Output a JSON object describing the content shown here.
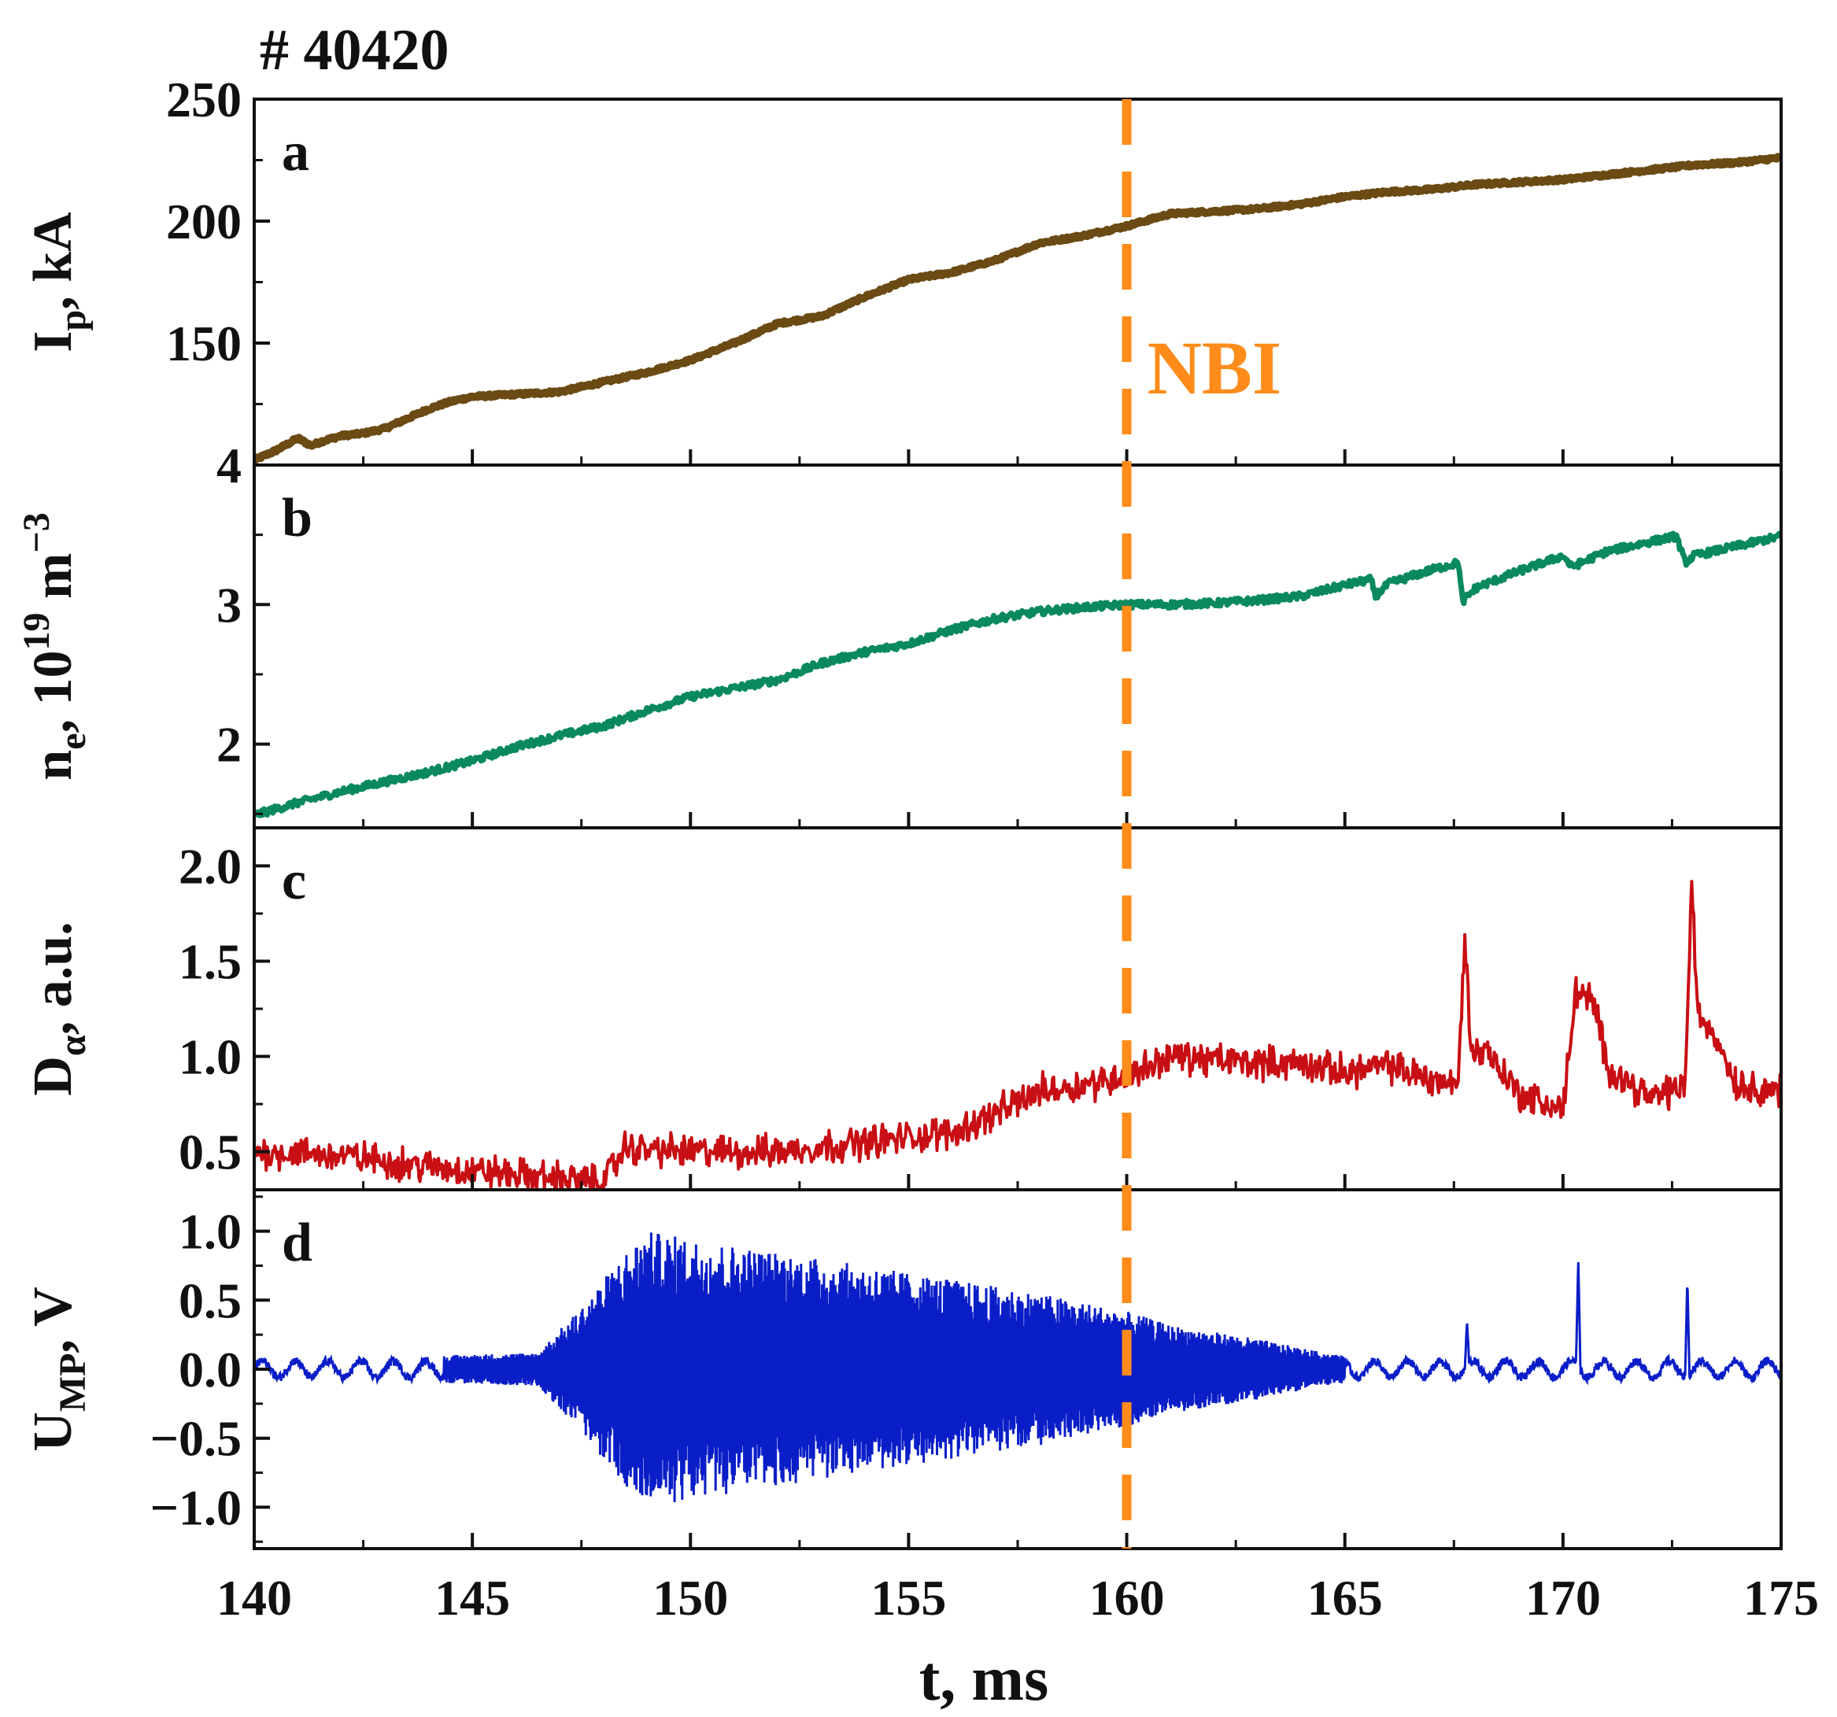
{
  "figure": {
    "shot_label": "# 40420",
    "event_label": "NBI",
    "event_color": "#ff8c1a"
  },
  "chart_data": [
    {
      "type": "line",
      "panel": "a",
      "ylabel": "I_p, kA",
      "ylabel_main": "I",
      "ylabel_sub": "p",
      "ylabel_tail": ", kA",
      "ylim": [
        100,
        250
      ],
      "yticks": [
        150,
        200,
        250
      ],
      "ytick_labels": [
        "150",
        "200",
        "250"
      ],
      "xlim": [
        140,
        175
      ],
      "color": "#6b4a14",
      "noise": 0.6,
      "x": [
        140,
        140.5,
        141,
        141.3,
        141.6,
        142,
        142.5,
        143,
        143.5,
        144,
        144.5,
        145,
        146,
        147,
        148,
        149,
        150,
        151,
        152,
        153,
        154,
        155,
        156,
        157,
        158,
        159,
        160,
        161,
        162,
        163,
        164,
        165,
        166,
        167,
        168,
        169,
        170,
        171,
        172,
        173,
        174,
        175
      ],
      "values": [
        102,
        106,
        111,
        108,
        110,
        112,
        113,
        115,
        119,
        123,
        126,
        128,
        129,
        130,
        134,
        138,
        143,
        150,
        158,
        161,
        169,
        176,
        179,
        184,
        191,
        194,
        198,
        203,
        204,
        205,
        207,
        210,
        212,
        213,
        215,
        216,
        217,
        219,
        221,
        223,
        224,
        226
      ]
    },
    {
      "type": "line",
      "panel": "b",
      "ylabel": "n_e, 10^19 m^-3",
      "ylabel_main": "n",
      "ylabel_sub": "e",
      "ylabel_mid": ", 10",
      "ylabel_sup1": "19",
      "ylabel_mid2": " m",
      "ylabel_sup2": "−3",
      "ylim": [
        1.4,
        4.0
      ],
      "yticks": [
        2,
        3,
        4
      ],
      "ytick_labels": [
        "2",
        "3",
        "4"
      ],
      "xlim": [
        140,
        175
      ],
      "color": "#0a8a5c",
      "noise": 0.025,
      "x": [
        140,
        141,
        142,
        143,
        144,
        145,
        146,
        147,
        148,
        149,
        150,
        151,
        152,
        153,
        154,
        155,
        156,
        157,
        158,
        159,
        160,
        161,
        162,
        163,
        164,
        165,
        165.6,
        165.7,
        166,
        167,
        167.6,
        167.7,
        168,
        169,
        170,
        170.2,
        171,
        172,
        172.6,
        172.8,
        173,
        174,
        175
      ],
      "values": [
        1.49,
        1.58,
        1.66,
        1.73,
        1.8,
        1.88,
        1.98,
        2.06,
        2.13,
        2.24,
        2.34,
        2.4,
        2.46,
        2.58,
        2.66,
        2.72,
        2.82,
        2.9,
        2.95,
        2.98,
        3.0,
        3.0,
        3.01,
        3.03,
        3.06,
        3.14,
        3.18,
        3.06,
        3.15,
        3.25,
        3.3,
        3.02,
        3.12,
        3.24,
        3.35,
        3.27,
        3.38,
        3.45,
        3.49,
        3.3,
        3.35,
        3.42,
        3.49
      ]
    },
    {
      "type": "line",
      "panel": "c",
      "ylabel": "D_α, a.u.",
      "ylabel_main": "D",
      "ylabel_sub": "α",
      "ylabel_tail": ", a.u.",
      "ylim": [
        0.3,
        2.2
      ],
      "yticks": [
        0.5,
        1.0,
        1.5,
        2.0
      ],
      "ytick_labels": [
        "0.5",
        "1.0",
        "1.5",
        "2.0"
      ],
      "xlim": [
        140,
        175
      ],
      "color": "#c80f14",
      "noise": 0.06,
      "x": [
        140,
        142,
        144,
        146,
        147,
        148,
        148.5,
        150,
        152,
        154,
        156,
        157,
        158,
        159,
        160,
        161,
        162,
        163,
        164,
        165,
        166,
        167,
        167.6,
        167.75,
        167.9,
        168.2,
        169,
        170,
        170.3,
        170.6,
        170.8,
        171,
        172,
        172.8,
        172.95,
        173.1,
        173.4,
        174,
        175
      ],
      "values": [
        0.5,
        0.48,
        0.42,
        0.38,
        0.36,
        0.34,
        0.52,
        0.5,
        0.5,
        0.55,
        0.6,
        0.7,
        0.82,
        0.85,
        0.9,
        1.0,
        0.98,
        0.97,
        0.96,
        0.92,
        0.95,
        0.88,
        0.85,
        1.65,
        1.0,
        1.05,
        0.8,
        0.72,
        1.35,
        1.3,
        1.2,
        0.95,
        0.78,
        0.85,
        1.9,
        1.2,
        1.15,
        0.85,
        0.82
      ]
    },
    {
      "type": "line",
      "panel": "d",
      "ylabel": "U_MP, V",
      "ylabel_main": "U",
      "ylabel_sub": "MP",
      "ylabel_tail": ", V",
      "ylim": [
        -1.3,
        1.3
      ],
      "yticks": [
        -1.0,
        -0.5,
        0.0,
        0.5,
        1.0
      ],
      "ytick_labels": [
        "−1.0",
        "−0.5",
        "0.0",
        "0.5",
        "1.0"
      ],
      "xlim": [
        140,
        175
      ],
      "color": "#0a1ec8",
      "baseline_amplitude": 0.06,
      "envelope_x": [
        140,
        146.5,
        147.5,
        148.5,
        149,
        150,
        152,
        154,
        156,
        158,
        160,
        161,
        163,
        164.5,
        165.5,
        175
      ],
      "envelope_amp": [
        0.06,
        0.12,
        0.45,
        0.85,
        1.0,
        0.95,
        0.85,
        0.75,
        0.65,
        0.55,
        0.42,
        0.32,
        0.22,
        0.12,
        0.08,
        0.06
      ],
      "spikes": [
        {
          "x": 167.8,
          "value": 0.35
        },
        {
          "x": 170.35,
          "value": 0.8
        },
        {
          "x": 172.85,
          "value": 0.66
        }
      ]
    }
  ],
  "x_axis": {
    "xlabel": "t, ms",
    "xlim": [
      140,
      175
    ],
    "ticks": [
      140,
      145,
      150,
      155,
      160,
      165,
      170,
      175
    ],
    "tick_labels": [
      "140",
      "145",
      "150",
      "155",
      "160",
      "165",
      "170",
      "175"
    ],
    "event_x": 160
  }
}
